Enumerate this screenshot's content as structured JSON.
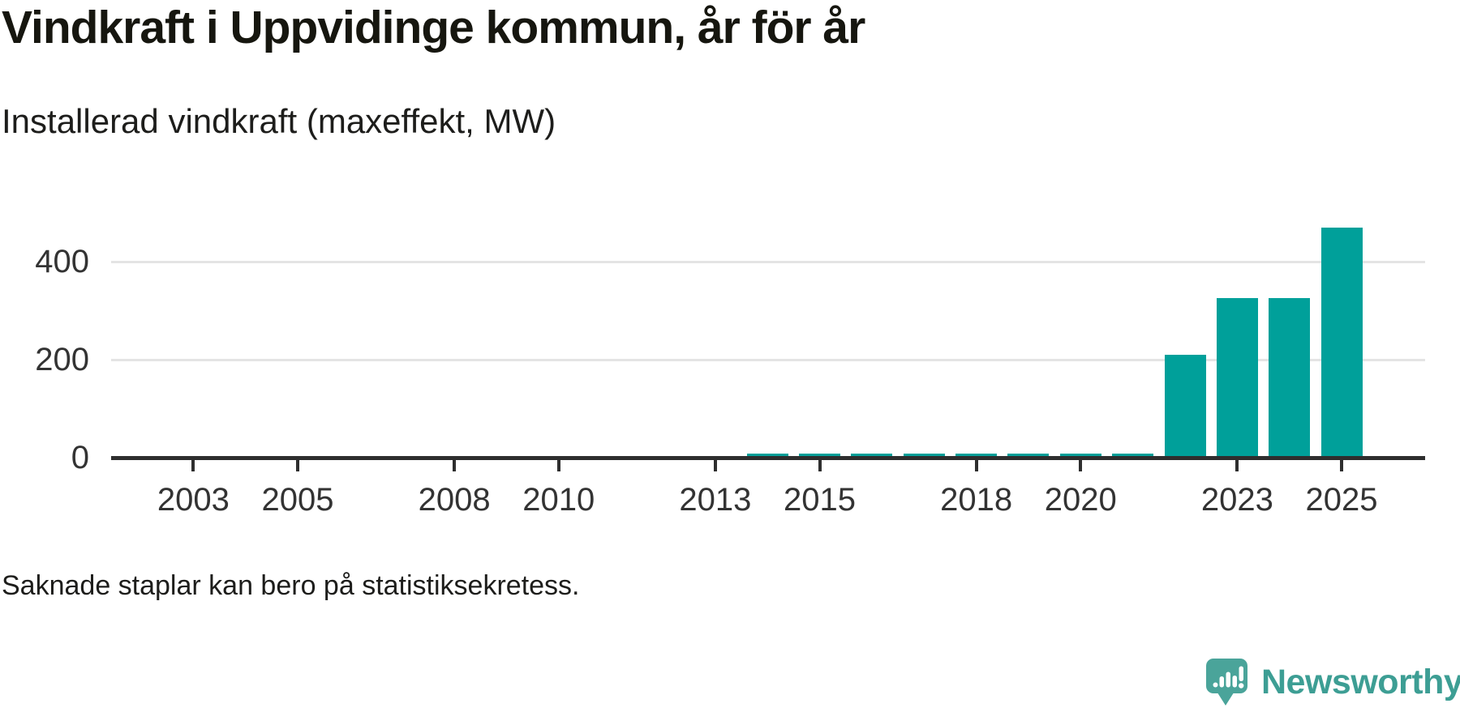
{
  "header": {
    "title": "Vindkraft i Uppvidinge kommun, år för år",
    "subtitle": "Installerad vindkraft (maxeffekt, MW)"
  },
  "footnote": "Saknade staplar kan bero på statistiksekretess.",
  "branding": {
    "name": "Newsworthy",
    "icon": "newsworthy-speech-bubble-chart-icon"
  },
  "colors": {
    "bar": "#00a09a",
    "axis": "#2e2e2e",
    "tick_label": "#333333",
    "grid": "#e4e4e4",
    "brand_teal": "#3d9e94",
    "brand_icon_teal": "#4aa49a",
    "text": "#1d1d1b"
  },
  "chart_data": {
    "type": "bar",
    "title": "Vindkraft i Uppvidinge kommun, år för år",
    "subtitle": "Installerad vindkraft (maxeffekt, MW)",
    "unit": "MW",
    "ylabel": "Installerad vindkraft (maxeffekt, MW)",
    "xlabel": "",
    "x": [
      2002,
      2003,
      2004,
      2005,
      2006,
      2007,
      2008,
      2009,
      2010,
      2011,
      2012,
      2013,
      2014,
      2015,
      2016,
      2017,
      2018,
      2019,
      2020,
      2021,
      2022,
      2023,
      2024,
      2025
    ],
    "values": [
      null,
      null,
      null,
      null,
      null,
      null,
      null,
      null,
      null,
      null,
      4,
      4,
      8,
      8,
      8,
      8,
      8,
      8,
      8,
      8,
      210,
      325,
      325,
      470
    ],
    "ylim": [
      0,
      490
    ],
    "yticks": [
      0,
      200,
      400
    ],
    "xtick_labels": [
      "2003",
      "2005",
      "2008",
      "2010",
      "2013",
      "2015",
      "2018",
      "2020",
      "2023",
      "2025"
    ],
    "grid": "horizontal",
    "legend": "none",
    "bar_color": "#00a09a",
    "note": "Saknade staplar kan bero på statistiksekretess."
  }
}
